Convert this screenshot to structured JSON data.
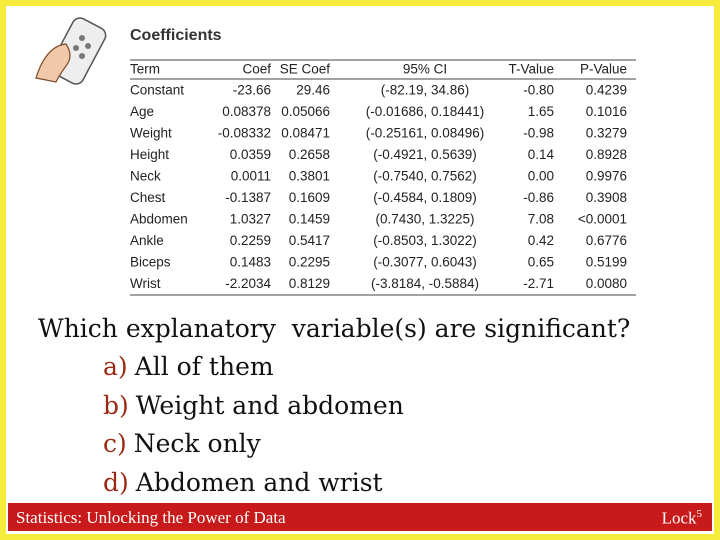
{
  "table": {
    "title": "Coefficients",
    "columns": [
      "Term",
      "Coef",
      "SE Coef",
      "95% CI",
      "T-Value",
      "P-Value"
    ],
    "rows": [
      [
        "Constant",
        "-23.66",
        "29.46",
        "(-82.19, 34.86)",
        "-0.80",
        "0.4239"
      ],
      [
        "Age",
        "0.08378",
        "0.05066",
        "(-0.01686, 0.18441)",
        "1.65",
        "0.1016"
      ],
      [
        "Weight",
        "-0.08332",
        "0.08471",
        "(-0.25161, 0.08496)",
        "-0.98",
        "0.3279"
      ],
      [
        "Height",
        "0.0359",
        "0.2658",
        "(-0.4921, 0.5639)",
        "0.14",
        "0.8928"
      ],
      [
        "Neck",
        "0.0011",
        "0.3801",
        "(-0.7540, 0.7562)",
        "0.00",
        "0.9976"
      ],
      [
        "Chest",
        "-0.1387",
        "0.1609",
        "(-0.4584, 0.1809)",
        "-0.86",
        "0.3908"
      ],
      [
        "Abdomen",
        "1.0327",
        "0.1459",
        "(0.7430, 1.3225)",
        "7.08",
        "<0.0001"
      ],
      [
        "Ankle",
        "0.2259",
        "0.5417",
        "(-0.8503, 1.3022)",
        "0.42",
        "0.6776"
      ],
      [
        "Biceps",
        "0.1483",
        "0.2295",
        "(-0.3077, 0.6043)",
        "0.65",
        "0.5199"
      ],
      [
        "Wrist",
        "-2.2034",
        "0.8129",
        "(-3.8184, -0.5884)",
        "-2.71",
        "0.0080"
      ]
    ]
  },
  "question": {
    "text": "Which explanatory  variable(s) are significant?",
    "options": [
      {
        "letter": "a)",
        "text": "All of them"
      },
      {
        "letter": "b)",
        "text": "Weight and abdomen"
      },
      {
        "letter": "c)",
        "text": "Neck only"
      },
      {
        "letter": "d)",
        "text": "Abdomen and wrist"
      }
    ]
  },
  "footer": {
    "left": "Statistics: Unlocking the Power of Data",
    "right": "Lock",
    "right_sup": "5"
  }
}
